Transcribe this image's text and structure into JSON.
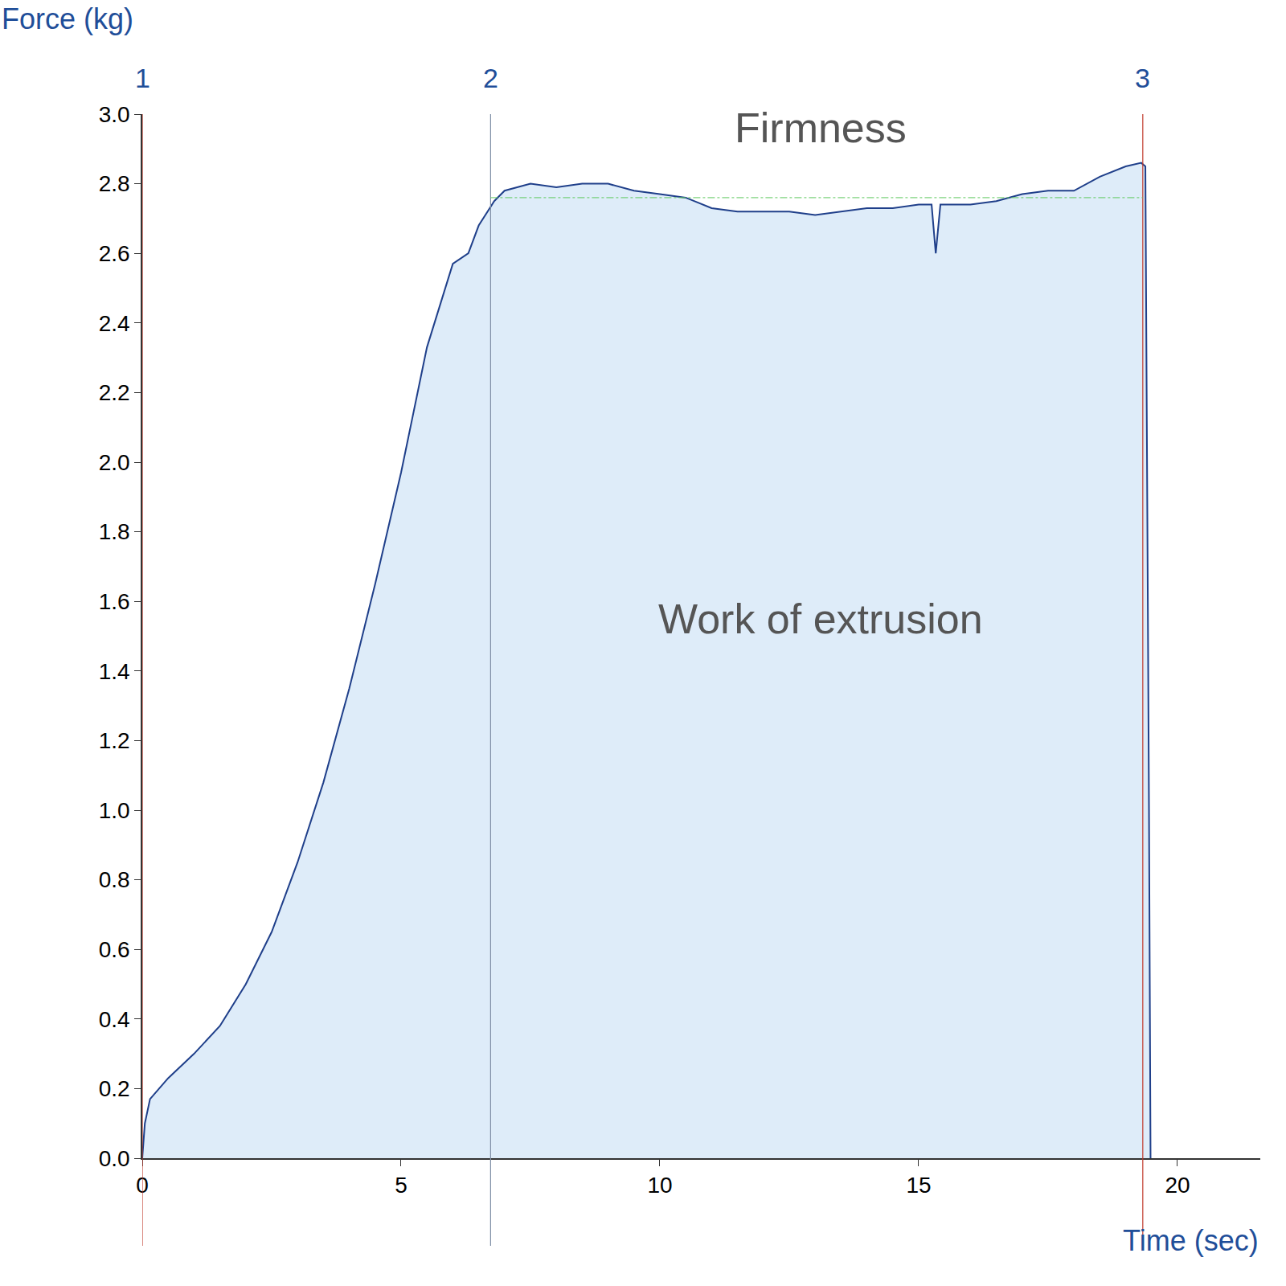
{
  "chart_data": {
    "type": "area",
    "x_label": "Time (sec)",
    "y_label": "Force (kg)",
    "color": "#1f3f8a",
    "x": [
      0,
      0.05,
      0.15,
      0.5,
      1.0,
      1.5,
      2.0,
      2.5,
      3.0,
      3.5,
      4.0,
      4.5,
      5.0,
      5.5,
      6.0,
      6.3,
      6.5,
      6.8,
      7.0,
      7.5,
      8.0,
      8.5,
      9.0,
      9.5,
      10.0,
      10.5,
      11.0,
      11.5,
      12.0,
      12.5,
      13.0,
      13.5,
      14.0,
      14.5,
      15.0,
      15.25,
      15.33,
      15.42,
      15.6,
      16.0,
      16.5,
      17.0,
      17.5,
      18.0,
      18.5,
      19.0,
      19.3,
      19.38,
      19.45,
      19.48
    ],
    "values": [
      0,
      0.1,
      0.17,
      0.23,
      0.3,
      0.38,
      0.5,
      0.65,
      0.85,
      1.08,
      1.35,
      1.65,
      1.97,
      2.33,
      2.57,
      2.6,
      2.68,
      2.75,
      2.78,
      2.8,
      2.79,
      2.8,
      2.8,
      2.78,
      2.77,
      2.76,
      2.73,
      2.72,
      2.72,
      2.72,
      2.71,
      2.72,
      2.73,
      2.73,
      2.74,
      2.74,
      2.6,
      2.74,
      2.74,
      2.74,
      2.75,
      2.77,
      2.78,
      2.78,
      2.82,
      2.85,
      2.86,
      2.85,
      1.0,
      0
    ],
    "xlim": [
      0,
      21.6
    ],
    "ylim": [
      0,
      3.0
    ],
    "xticks": [
      0,
      5,
      10,
      15,
      20
    ],
    "yticks": [
      {
        "value": 0,
        "label": "0.0"
      },
      0.2,
      0.4,
      0.6,
      0.8,
      {
        "value": 1,
        "label": "1.0"
      },
      1.2,
      1.4,
      1.6,
      1.8,
      {
        "value": 2,
        "label": "2.0"
      },
      2.2,
      2.4,
      2.6,
      2.8,
      {
        "value": 3,
        "label": "3.0"
      }
    ],
    "grid": false,
    "markers": [
      {
        "label": "1",
        "x": 0,
        "color": "#c0392b"
      },
      {
        "label": "2",
        "x": 6.73,
        "color": "#7f8fa6"
      },
      {
        "label": "3",
        "x": 19.33,
        "color": "#c0392b"
      }
    ],
    "reference_line": {
      "y": 2.76,
      "x": [
        6.73,
        19.33
      ],
      "color": "#5cc85c",
      "line_style": "dashdot"
    },
    "annotations": [
      {
        "text": "Firmness",
        "x": 13.1,
        "y": 2.96
      },
      {
        "text": "Work of extrusion",
        "x": 13.1,
        "y": 1.55
      }
    ]
  }
}
